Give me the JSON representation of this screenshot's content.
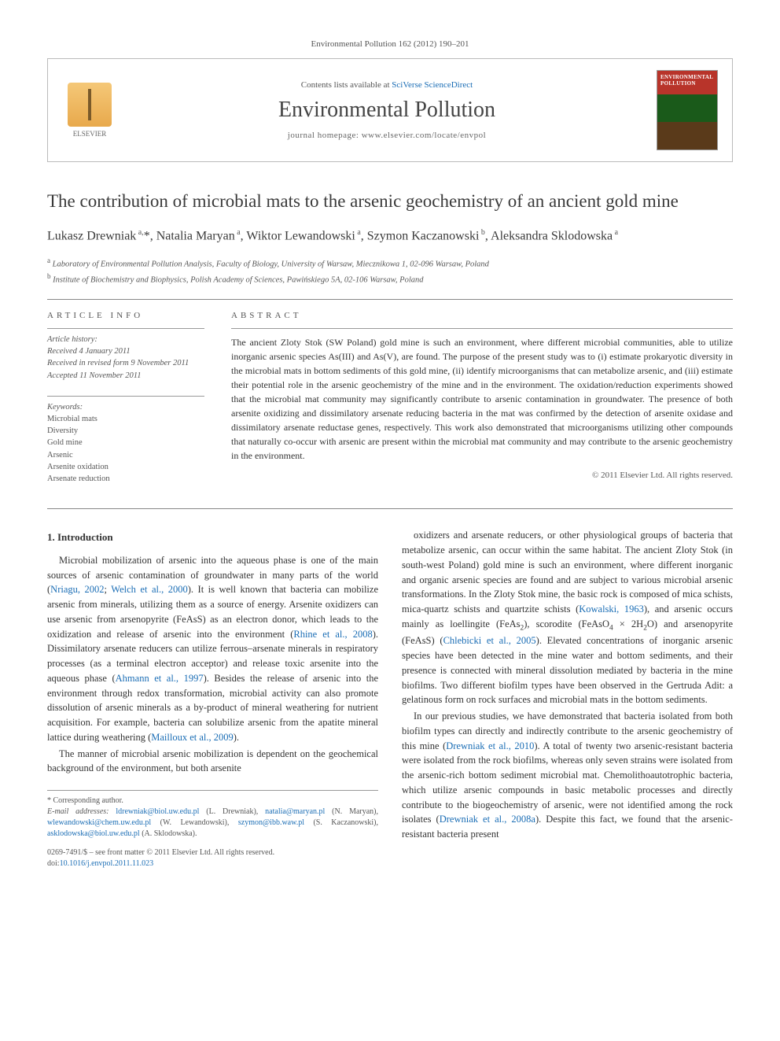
{
  "journal_ref": "Environmental Pollution 162 (2012) 190–201",
  "header": {
    "contents_prefix": "Contents lists available at ",
    "contents_link": "SciVerse ScienceDirect",
    "journal_name": "Environmental Pollution",
    "homepage_prefix": "journal homepage: ",
    "homepage_url": "www.elsevier.com/locate/envpol",
    "publisher_name": "ELSEVIER",
    "cover_label": "ENVIRONMENTAL POLLUTION"
  },
  "title": "The contribution of microbial mats to the arsenic geochemistry of an ancient gold mine",
  "authors_html": "Lukasz Drewniak<sup> a,</sup>*, Natalia Maryan<sup> a</sup>, Wiktor Lewandowski<sup> a</sup>, Szymon Kaczanowski<sup> b</sup>, Aleksandra Sklodowska<sup> a</sup>",
  "affiliations": [
    {
      "sup": "a",
      "text": "Laboratory of Environmental Pollution Analysis, Faculty of Biology, University of Warsaw, Miecznikowa 1, 02-096 Warsaw, Poland"
    },
    {
      "sup": "b",
      "text": "Institute of Biochemistry and Biophysics, Polish Academy of Sciences, Pawińskiego 5A, 02-106 Warsaw, Poland"
    }
  ],
  "article_info_label": "ARTICLE INFO",
  "abstract_label": "ABSTRACT",
  "history": {
    "label": "Article history:",
    "received": "Received 4 January 2011",
    "revised": "Received in revised form 9 November 2011",
    "accepted": "Accepted 11 November 2011"
  },
  "keywords": {
    "label": "Keywords:",
    "items": [
      "Microbial mats",
      "Diversity",
      "Gold mine",
      "Arsenic",
      "Arsenite oxidation",
      "Arsenate reduction"
    ]
  },
  "abstract": "The ancient Zloty Stok (SW Poland) gold mine is such an environment, where different microbial communities, able to utilize inorganic arsenic species As(III) and As(V), are found. The purpose of the present study was to (i) estimate prokaryotic diversity in the microbial mats in bottom sediments of this gold mine, (ii) identify microorganisms that can metabolize arsenic, and (iii) estimate their potential role in the arsenic geochemistry of the mine and in the environment. The oxidation/reduction experiments showed that the microbial mat community may significantly contribute to arsenic contamination in groundwater. The presence of both arsenite oxidizing and dissimilatory arsenate reducing bacteria in the mat was confirmed by the detection of arsenite oxidase and dissimilatory arsenate reductase genes, respectively. This work also demonstrated that microorganisms utilizing other compounds that naturally co-occur with arsenic are present within the microbial mat community and may contribute to the arsenic geochemistry in the environment.",
  "copyright": "© 2011 Elsevier Ltd. All rights reserved.",
  "section1_heading": "1. Introduction",
  "body": {
    "p1_a": "Microbial mobilization of arsenic into the aqueous phase is one of the main sources of arsenic contamination of groundwater in many parts of the world (",
    "p1_ref1": "Nriagu, 2002",
    "p1_sep1": "; ",
    "p1_ref2": "Welch et al., 2000",
    "p1_b": "). It is well known that bacteria can mobilize arsenic from minerals, utilizing them as a source of energy. Arsenite oxidizers can use arsenic from arsenopyrite (FeAsS) as an electron donor, which leads to the oxidization and release of arsenic into the environment (",
    "p1_ref3": "Rhine et al., 2008",
    "p1_c": "). Dissimilatory arsenate reducers can utilize ferrous–arsenate minerals in respiratory processes (as a terminal electron acceptor) and release toxic arsenite into the aqueous phase (",
    "p1_ref4": "Ahmann et al., 1997",
    "p1_d": "). Besides the release of arsenic into the environment through redox transformation, microbial activity can also promote dissolution of arsenic minerals as a by-product of mineral weathering for nutrient acquisition. For example, bacteria can solubilize arsenic from the apatite mineral lattice during weathering (",
    "p1_ref5": "Mailloux et al., 2009",
    "p1_e": ").",
    "p2": "The manner of microbial arsenic mobilization is dependent on the geochemical background of the environment, but both arsenite",
    "p3_a": "oxidizers and arsenate reducers, or other physiological groups of bacteria that metabolize arsenic, can occur within the same habitat. The ancient Zloty Stok (in south-west Poland) gold mine is such an environment, where different inorganic and organic arsenic species are found and are subject to various microbial arsenic transformations. In the Zloty Stok mine, the basic rock is composed of mica schists, mica-quartz schists and quartzite schists (",
    "p3_ref1": "Kowalski, 1963",
    "p3_b": "), and arsenic occurs mainly as loellingite (FeAs",
    "p3_sub1": "2",
    "p3_c": "), scorodite (FeAsO",
    "p3_sub2": "4",
    "p3_d": " × 2H",
    "p3_sub3": "2",
    "p3_e": "O) and arsenopyrite (FeAsS) (",
    "p3_ref2": "Chlebicki et al., 2005",
    "p3_f": "). Elevated concentrations of inorganic arsenic species have been detected in the mine water and bottom sediments, and their presence is connected with mineral dissolution mediated by bacteria in the mine biofilms. Two different biofilm types have been observed in the Gertruda Adit: a gelatinous form on rock surfaces and microbial mats in the bottom sediments.",
    "p4_a": "In our previous studies, we have demonstrated that bacteria isolated from both biofilm types can directly and indirectly contribute to the arsenic geochemistry of this mine (",
    "p4_ref1": "Drewniak et al., 2010",
    "p4_b": "). A total of twenty two arsenic-resistant bacteria were isolated from the rock biofilms, whereas only seven strains were isolated from the arsenic-rich bottom sediment microbial mat. Chemolithoautotrophic bacteria, which utilize arsenic compounds in basic metabolic processes and directly contribute to the biogeochemistry of arsenic, were not identified among the rock isolates (",
    "p4_ref2": "Drewniak et al., 2008a",
    "p4_c": "). Despite this fact, we found that the arsenic-resistant bacteria present"
  },
  "footnotes": {
    "corresponding": "* Corresponding author.",
    "emails_label": "E-mail addresses: ",
    "emails": [
      {
        "addr": "ldrewniak@biol.uw.edu.pl",
        "who": "(L. Drewniak)"
      },
      {
        "addr": "natalia@maryan.pl",
        "who": "(N. Maryan)"
      },
      {
        "addr": "wlewandowski@chem.uw.edu.pl",
        "who": "(W. Lewandowski)"
      },
      {
        "addr": "szymon@ibb.waw.pl",
        "who": "(S. Kaczanowski)"
      },
      {
        "addr": "asklodowska@biol.uw.edu.pl",
        "who": "(A. Sklodowska)"
      }
    ]
  },
  "doi": {
    "line1": "0269-7491/$ – see front matter © 2011 Elsevier Ltd. All rights reserved.",
    "prefix": "doi:",
    "value": "10.1016/j.envpol.2011.11.023"
  },
  "colors": {
    "link": "#1a6db5",
    "text": "#333333",
    "muted": "#555555",
    "rule": "#888888"
  }
}
